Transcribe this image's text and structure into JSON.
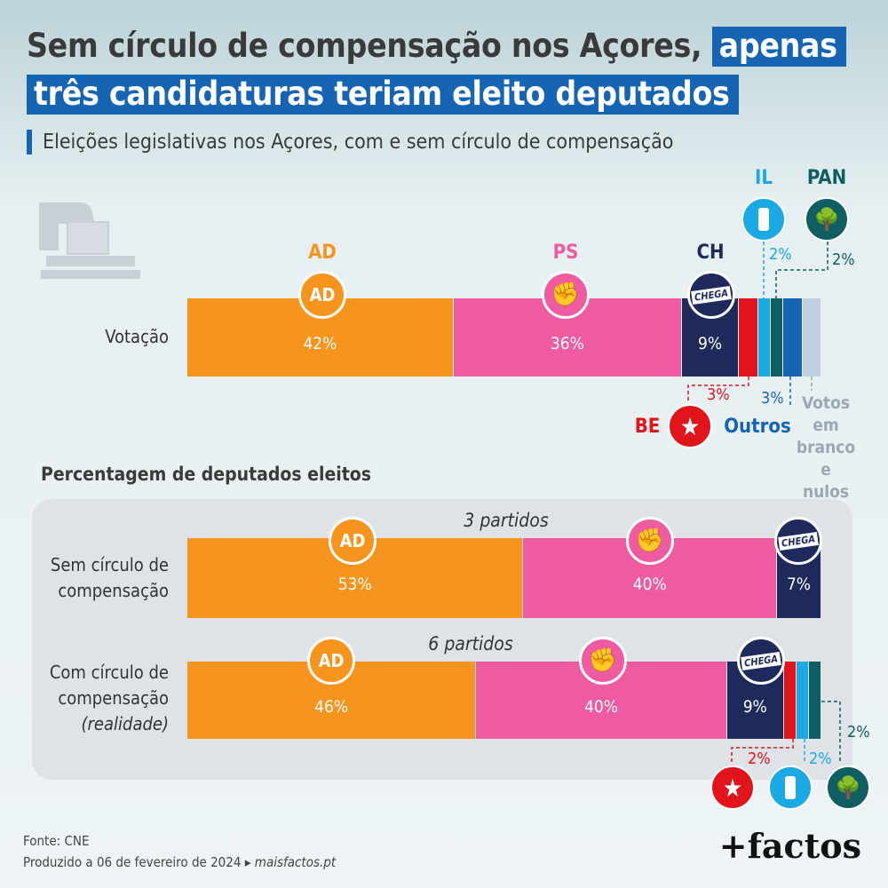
{
  "title": {
    "part1": "Sem círculo de compensação nos Açores,",
    "part2": "apenas",
    "part3": "três candidaturas teriam eleito deputados"
  },
  "subtitle": "Eleições legislativas nos Açores, com e sem círculo de compensação",
  "section_title": "Percentagem de deputados eleitos",
  "colors": {
    "AD": "#f7941d",
    "PS": "#ef5ba1",
    "CH": "#1d2a5b",
    "BE": "#e1141b",
    "IL": "#1ba9e3",
    "PAN": "#0f5e63",
    "Outros": "#1565b4",
    "Brancos": "#bfcfe0"
  },
  "logos": {
    "AD": "AD",
    "CH": "CHEGA"
  },
  "chart_data": [
    {
      "type": "bar",
      "stacked": true,
      "orientation": "horizontal",
      "row_label": "Votação",
      "series": [
        {
          "name": "AD",
          "value": 42,
          "label": "42%"
        },
        {
          "name": "PS",
          "value": 36,
          "label": "36%"
        },
        {
          "name": "CH",
          "value": 9,
          "label": "9%"
        },
        {
          "name": "BE",
          "value": 3,
          "label": "3%"
        },
        {
          "name": "IL",
          "value": 2,
          "label": "2%"
        },
        {
          "name": "PAN",
          "value": 2,
          "label": "2%"
        },
        {
          "name": "Outros",
          "value": 3,
          "label": "3%"
        },
        {
          "name": "Votos em branco e nulos",
          "value": 3,
          "label": ""
        }
      ],
      "party_names": {
        "AD": "AD",
        "PS": "PS",
        "CH": "CH",
        "IL": "IL",
        "PAN": "PAN",
        "BE": "BE",
        "Outros": "Outros"
      },
      "blank_label_lines": [
        "Votos em",
        "branco e",
        "nulos"
      ]
    },
    {
      "type": "bar",
      "stacked": true,
      "orientation": "horizontal",
      "row_label_lines": [
        "Sem círculo de",
        "compensação"
      ],
      "annotation": "3 partidos",
      "series": [
        {
          "name": "AD",
          "value": 53,
          "label": "53%"
        },
        {
          "name": "PS",
          "value": 40,
          "label": "40%"
        },
        {
          "name": "CH",
          "value": 7,
          "label": "7%"
        }
      ]
    },
    {
      "type": "bar",
      "stacked": true,
      "orientation": "horizontal",
      "row_label_lines": [
        "Com círculo de",
        "compensação",
        "(realidade)"
      ],
      "annotation": "6 partidos",
      "series": [
        {
          "name": "AD",
          "value": 46,
          "label": "46%"
        },
        {
          "name": "PS",
          "value": 40,
          "label": "40%"
        },
        {
          "name": "CH",
          "value": 9,
          "label": "9%"
        },
        {
          "name": "BE",
          "value": 2,
          "label": "2%"
        },
        {
          "name": "IL",
          "value": 2,
          "label": "2%"
        },
        {
          "name": "PAN",
          "value": 2,
          "label": "2%"
        }
      ]
    }
  ],
  "footer": {
    "source": "Fonte: CNE",
    "produced": "Produzido a 06 de fevereiro de 2024 ▸",
    "site": "maisfactos.pt"
  },
  "brand": "+factos"
}
